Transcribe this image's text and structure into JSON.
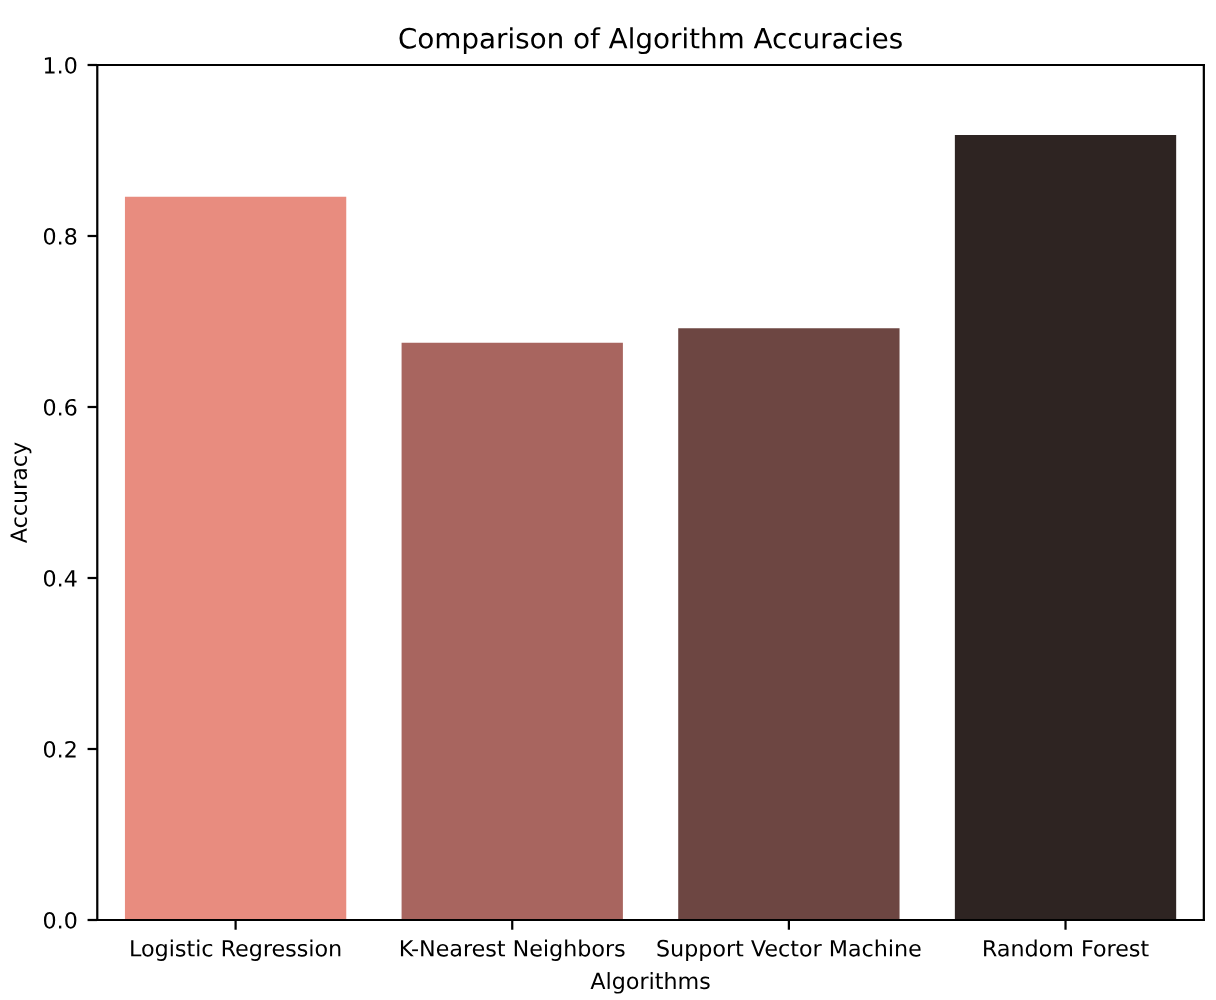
{
  "chart_data": {
    "type": "bar",
    "title": "Comparison of Algorithm Accuracies",
    "xlabel": "Algorithms",
    "ylabel": "Accuracy",
    "categories": [
      "Logistic Regression",
      "K-Nearest Neighbors",
      "Support Vector Machine",
      "Random Forest"
    ],
    "values": [
      0.846,
      0.675,
      0.692,
      0.918
    ],
    "colors": [
      "#e88c7f",
      "#a8655f",
      "#6d4642",
      "#2e2422"
    ],
    "ylim": [
      0,
      1
    ],
    "yticks": [
      {
        "value": 0,
        "label": "0.0"
      },
      {
        "value": 0.2,
        "label": "0.2"
      },
      {
        "value": 0.4,
        "label": "0.4"
      },
      {
        "value": 0.6,
        "label": "0.6"
      },
      {
        "value": 0.8,
        "label": "0.8"
      },
      {
        "value": 1,
        "label": "1.0"
      }
    ]
  }
}
